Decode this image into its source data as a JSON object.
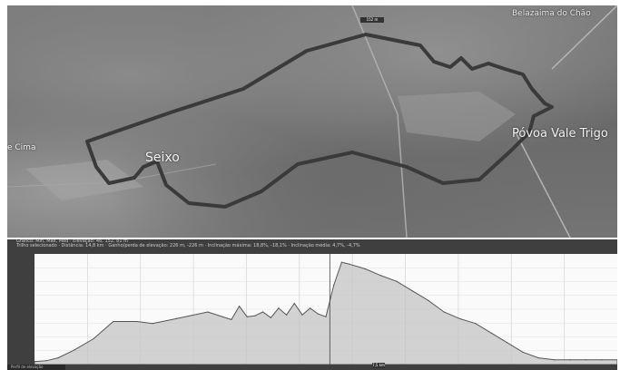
{
  "map": {
    "places": {
      "seixo": "Seixo",
      "povoa": "Póvoa Vale Trigo",
      "belazaima": "Belazaima do Chão",
      "cima": "e Cima"
    }
  },
  "profile": {
    "status_line_1": "Gráfico: Mín, Máx, Méd · Elevação: 46, 152, 81 m",
    "status_line_2": "Trilho selecionado · Distância: 14,8 km · Ganho/perda de elevação: 226 m, -226 m · Inclinação máxima: 18,8%, -18,1% · Inclinação média: 4,7%, -4,7%",
    "peak_label": "152 m",
    "distance_label": "7,5 km",
    "tab_label": "Perfil de elevação",
    "chart_data": {
      "type": "area",
      "x": [
        0,
        0.3,
        0.6,
        1.0,
        1.5,
        2.0,
        2.6,
        3.0,
        3.6,
        4.4,
        5.0,
        5.2,
        5.4,
        5.6,
        5.8,
        6.0,
        6.2,
        6.4,
        6.6,
        6.8,
        7.0,
        7.2,
        7.4,
        7.6,
        7.8,
        8.0,
        8.4,
        8.8,
        9.2,
        9.6,
        10.0,
        10.4,
        10.8,
        11.2,
        11.6,
        12.0,
        12.4,
        12.8,
        13.2,
        13.6,
        14.0,
        14.4,
        14.8
      ],
      "y": [
        48,
        49,
        52,
        60,
        72,
        90,
        90,
        88,
        93,
        100,
        92,
        106,
        95,
        96,
        100,
        94,
        104,
        97,
        109,
        97,
        104,
        98,
        95,
        128,
        152,
        150,
        145,
        138,
        132,
        122,
        112,
        100,
        93,
        88,
        78,
        68,
        58,
        52,
        50,
        50,
        50,
        50,
        50
      ],
      "ylim": [
        45,
        155
      ],
      "xlim": [
        0,
        14.8
      ],
      "grid": true,
      "cursor_x": 7.5
    }
  }
}
